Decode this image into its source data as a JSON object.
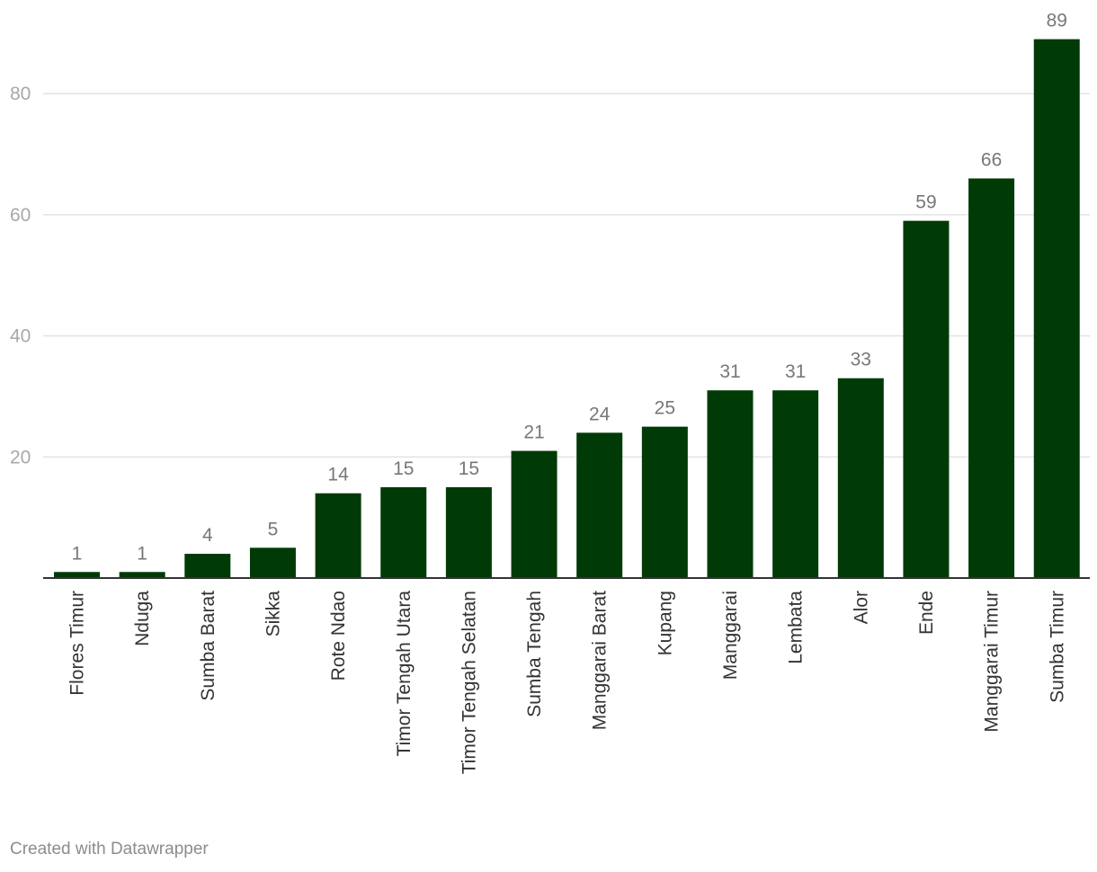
{
  "chart_data": {
    "type": "bar",
    "categories": [
      "Flores Timur",
      "Nduga",
      "Sumba Barat",
      "Sikka",
      "Rote Ndao",
      "Timor Tengah Utara",
      "Timor Tengah Selatan",
      "Sumba Tengah",
      "Manggarai Barat",
      "Kupang",
      "Manggarai",
      "Lembata",
      "Alor",
      "Ende",
      "Manggarai Timur",
      "Sumba Timur"
    ],
    "values": [
      1,
      1,
      4,
      5,
      14,
      15,
      15,
      21,
      24,
      25,
      31,
      31,
      33,
      59,
      66,
      89
    ],
    "y_ticks": [
      20,
      40,
      60,
      80
    ],
    "ylim": [
      0,
      89
    ],
    "grid": true,
    "bar_color": "#003a06"
  },
  "footer": {
    "credit": "Created with Datawrapper"
  }
}
